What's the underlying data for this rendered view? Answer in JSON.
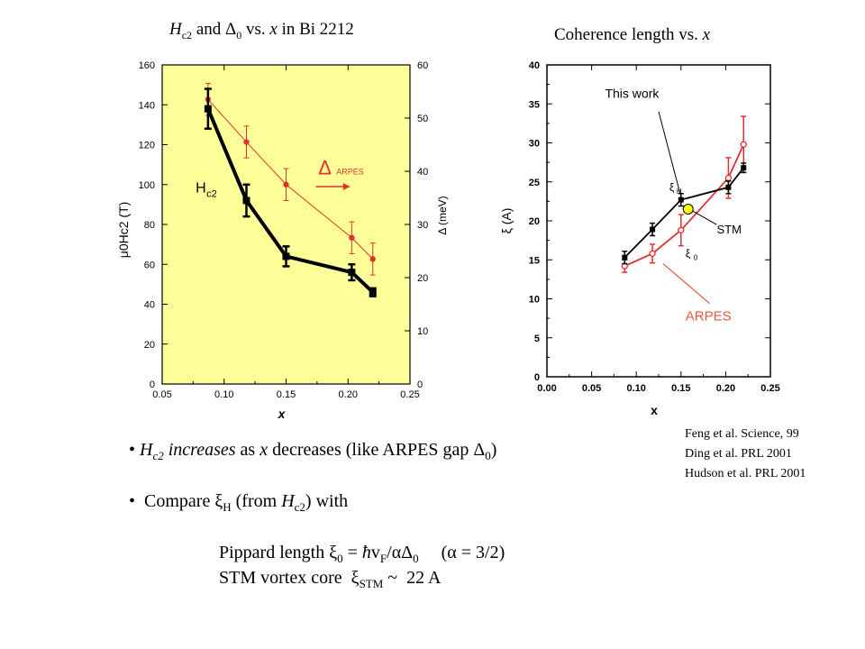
{
  "left_title": {
    "H": "H",
    "sub": "c2",
    "mid": " and ",
    "delta": "Δ",
    "delta_sub": "0",
    "tail": " vs. ",
    "x": "x",
    "end": " in Bi 2212"
  },
  "right_title": {
    "text": "Coherence length vs. ",
    "x": "x"
  },
  "colors": {
    "panel_bg": "#ffff99",
    "black_series": "#000000",
    "red_series": "#e03030",
    "stm_dot": "#ffff00",
    "arpes_label": "#e05a3a"
  },
  "chart_data": [
    {
      "type": "line",
      "panel": "left",
      "title": "Hc2 and Δ0 vs. x in Bi 2212",
      "xlabel": "x",
      "ylabel_left": "μ0Hc2 (T)",
      "ylabel_right": "Δ (meV)",
      "xlim": [
        0.05,
        0.25
      ],
      "ylim_left": [
        0,
        160
      ],
      "ylim_right": [
        0,
        60
      ],
      "x_ticks": [
        "0.05",
        "0.10",
        "0.15",
        "0.20",
        "0.25"
      ],
      "y_ticks_left": [
        "0",
        "20",
        "40",
        "60",
        "80",
        "100",
        "120",
        "140",
        "160"
      ],
      "y_ticks_right": [
        "0",
        "10",
        "20",
        "30",
        "40",
        "50",
        "60"
      ],
      "series": [
        {
          "name": "Hc2",
          "axis": "left",
          "color": "#000000",
          "x": [
            0.087,
            0.118,
            0.15,
            0.203,
            0.22
          ],
          "y": [
            138,
            92,
            64,
            56,
            46
          ],
          "err": [
            10,
            8,
            5,
            4,
            2
          ]
        },
        {
          "name": "Δ ARPES",
          "axis": "right",
          "color": "#e03030",
          "x": [
            0.087,
            0.118,
            0.15,
            0.203,
            0.22
          ],
          "y": [
            53.5,
            45.5,
            37.5,
            27.5,
            23.5
          ],
          "err": [
            3,
            3,
            3,
            3,
            3
          ]
        }
      ],
      "annotations": {
        "hc2_H": "H",
        "hc2_sub": "c2",
        "arpes_delta": "Δ",
        "arpes_sub": "ARPES"
      }
    },
    {
      "type": "line",
      "panel": "right",
      "title": "Coherence length vs. x",
      "xlabel": "x",
      "ylabel": "ξ (A)",
      "xlim": [
        0.0,
        0.25
      ],
      "ylim": [
        0,
        40
      ],
      "x_ticks": [
        "0.00",
        "0.05",
        "0.10",
        "0.15",
        "0.20",
        "0.25"
      ],
      "y_ticks": [
        "0",
        "5",
        "10",
        "15",
        "20",
        "25",
        "30",
        "35",
        "40"
      ],
      "series": [
        {
          "name": "ξH",
          "color": "#000000",
          "marker": "square",
          "x": [
            0.087,
            0.118,
            0.15,
            0.203,
            0.22
          ],
          "y": [
            15.3,
            18.9,
            22.7,
            24.3,
            26.8
          ],
          "err": [
            0.8,
            0.8,
            0.8,
            0.8,
            0.6
          ]
        },
        {
          "name": "ξ0",
          "color": "#e03030",
          "marker": "open-circle",
          "x": [
            0.087,
            0.118,
            0.15,
            0.203,
            0.22
          ],
          "y": [
            14.2,
            15.8,
            18.8,
            25.5,
            29.8
          ],
          "err": [
            0.8,
            1.2,
            2.0,
            2.6,
            3.6
          ]
        },
        {
          "name": "STM",
          "color": "#ffff00",
          "marker": "filled-circle",
          "x": [
            0.158
          ],
          "y": [
            21.5
          ]
        }
      ],
      "annotations": {
        "this_work": "This work",
        "stm": "STM",
        "arpes": "ARPES",
        "xi_h": "ξ",
        "xi_h_sub": "H",
        "xi_0": "ξ",
        "xi_0_sub": "0"
      }
    }
  ],
  "bullets": [
    {
      "marker": "•",
      "H": "H",
      "sub": "c2",
      "italic": " increases",
      "rest1": " as ",
      "x": "x",
      "rest2": " decreases (like ARPES gap ",
      "delta": "Δ",
      "delta_sub": "0",
      "close": ")"
    },
    {
      "marker": "•",
      "pre": "Compare ",
      "xi": "ξ",
      "xi_sub": "H",
      "mid": " (from ",
      "H": "H",
      "sub": "c2",
      "close": ") with"
    }
  ],
  "pippard": {
    "pre": "Pippard length ",
    "xi": "ξ",
    "xi_sub": "0",
    "eq": " =  ",
    "hbar": "ħ",
    "v": "v",
    "v_sub": "F",
    "slash": "/",
    "alpha": "α",
    "delta": "Δ",
    "delta_sub": "0",
    "gap": "     (",
    "alpha2": "α",
    "tail": " = 3/2)"
  },
  "stm_line": {
    "pre": "STM vortex core  ",
    "xi": "ξ",
    "xi_sub": "STM",
    "tail": " ~  22 A"
  },
  "references": [
    "Feng et al. Science, 99",
    "Ding et al. PRL 2001",
    "Hudson et al. PRL 2001"
  ]
}
